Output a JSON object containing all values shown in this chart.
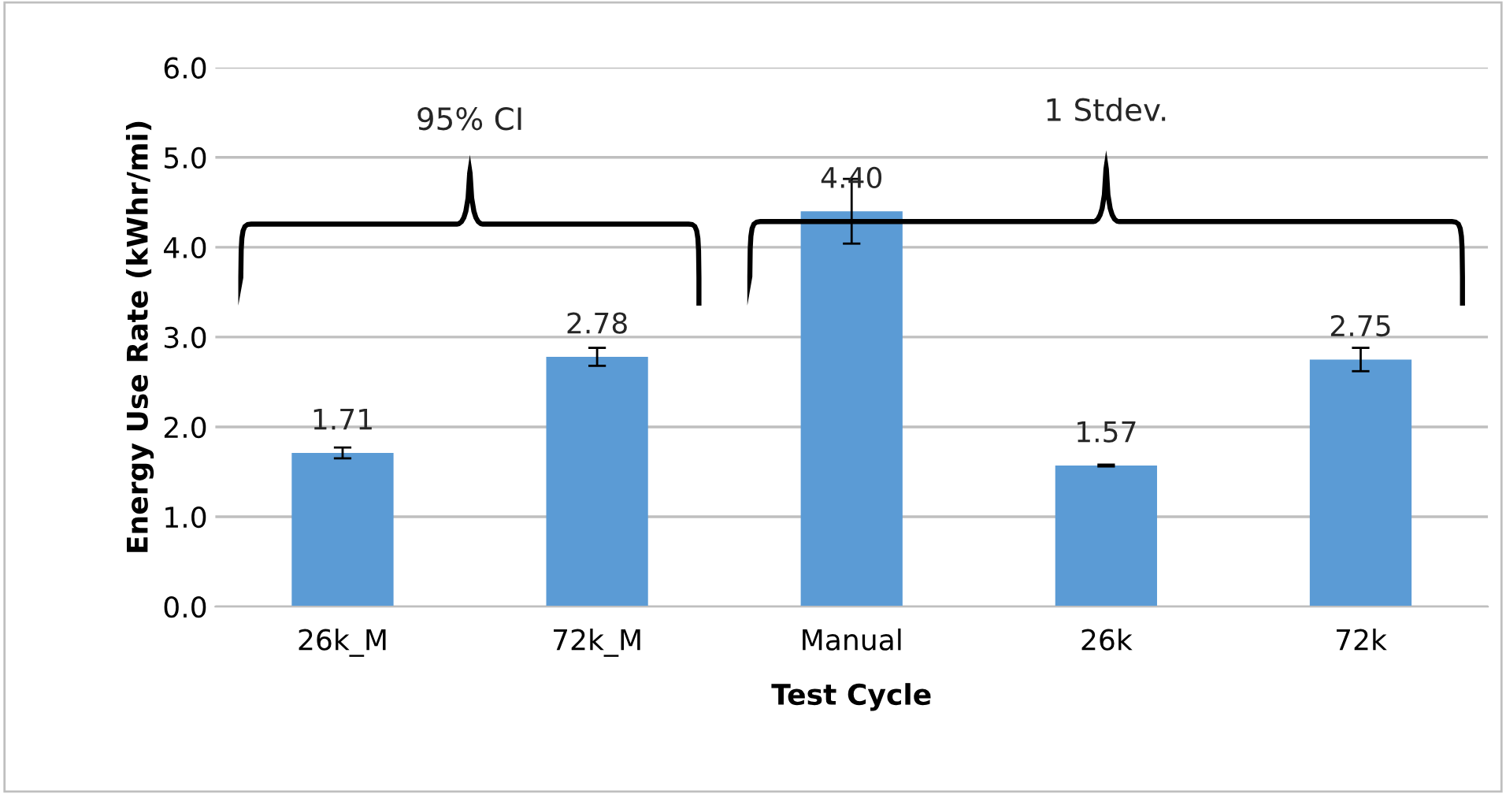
{
  "chart_data": {
    "type": "bar",
    "xlabel": "Test Cycle",
    "ylabel": "Energy Use Rate (kWhr/mi)",
    "categories": [
      "26k_M",
      "72k_M",
      "Manual",
      "26k",
      "72k"
    ],
    "values": [
      1.71,
      2.78,
      4.4,
      1.57,
      2.75
    ],
    "errors": [
      0.06,
      0.1,
      0.36,
      0.01,
      0.13
    ],
    "color": "#5b9bd5",
    "ylim": [
      0,
      6
    ],
    "yticks": [
      {
        "value": 0,
        "label": "0.0"
      },
      {
        "value": 1,
        "label": "1.0"
      },
      {
        "value": 2,
        "label": "2.0"
      },
      {
        "value": 3,
        "label": "3.0"
      },
      {
        "value": 4,
        "label": "4.0"
      },
      {
        "value": 5,
        "label": "5.0"
      },
      {
        "value": 6,
        "label": "6.0"
      }
    ],
    "grid": "y",
    "data_labels": true,
    "value_labels": [
      "1.71",
      "2.78",
      "4.40",
      "1.57",
      "2.75"
    ],
    "annotations": [
      "95% CI",
      "1 Stdev."
    ]
  }
}
